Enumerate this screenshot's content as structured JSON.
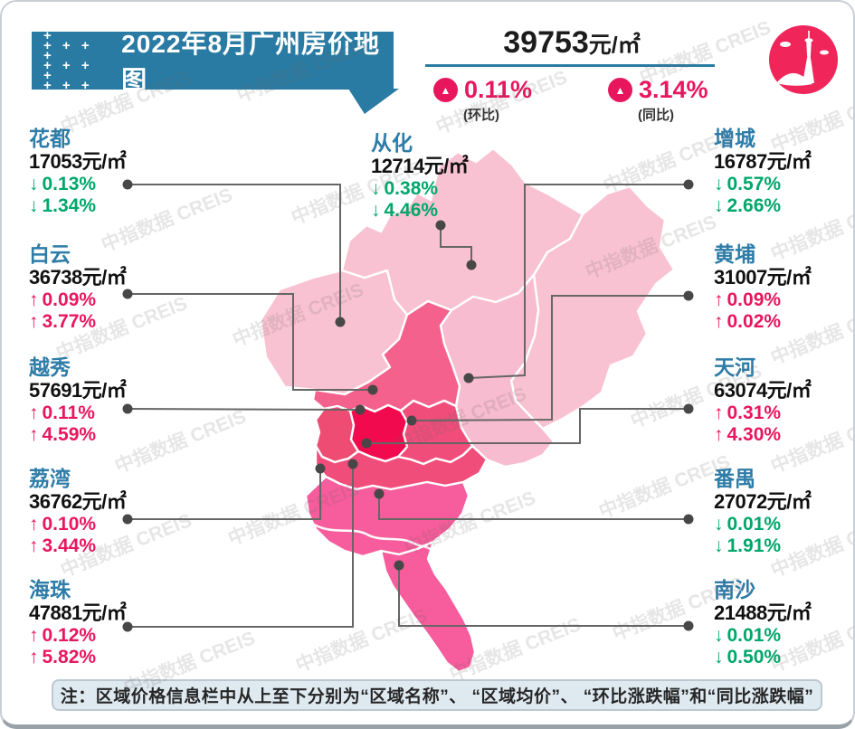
{
  "watermark": "中指数据 CREIS",
  "banner": {
    "title": "2022年8月广州房价地图"
  },
  "summary": {
    "avg_price": "39753",
    "unit": "元/㎡",
    "mom_value": "0.11%",
    "mom_label": "(环比)",
    "mom_dir": "up",
    "yoy_value": "3.14%",
    "yoy_label": "(同比)",
    "yoy_dir": "up"
  },
  "districts": [
    {
      "id": "huadu",
      "name": "花都",
      "price": "17053元/㎡",
      "mom_dir": "down",
      "mom": "0.13%",
      "yoy_dir": "down",
      "yoy": "1.34%"
    },
    {
      "id": "conghua",
      "name": "从化",
      "price": "12714元/㎡",
      "mom_dir": "down",
      "mom": "0.38%",
      "yoy_dir": "down",
      "yoy": "4.46%"
    },
    {
      "id": "zengcheng",
      "name": "增城",
      "price": "16787元/㎡",
      "mom_dir": "down",
      "mom": "0.57%",
      "yoy_dir": "down",
      "yoy": "2.66%"
    },
    {
      "id": "baiyun",
      "name": "白云",
      "price": "36738元/㎡",
      "mom_dir": "up",
      "mom": "0.09%",
      "yoy_dir": "up",
      "yoy": "3.77%"
    },
    {
      "id": "huangpu",
      "name": "黄埔",
      "price": "31007元/㎡",
      "mom_dir": "up",
      "mom": "0.09%",
      "yoy_dir": "up",
      "yoy": "0.02%"
    },
    {
      "id": "yuexiu",
      "name": "越秀",
      "price": "57691元/㎡",
      "mom_dir": "up",
      "mom": "0.11%",
      "yoy_dir": "up",
      "yoy": "4.59%"
    },
    {
      "id": "tianhe",
      "name": "天河",
      "price": "63074元/㎡",
      "mom_dir": "up",
      "mom": "0.31%",
      "yoy_dir": "up",
      "yoy": "4.30%"
    },
    {
      "id": "liwan",
      "name": "荔湾",
      "price": "36762元/㎡",
      "mom_dir": "up",
      "mom": "0.10%",
      "yoy_dir": "up",
      "yoy": "3.44%"
    },
    {
      "id": "panyu",
      "name": "番禺",
      "price": "27072元/㎡",
      "mom_dir": "down",
      "mom": "0.01%",
      "yoy_dir": "down",
      "yoy": "1.91%"
    },
    {
      "id": "haizhu",
      "name": "海珠",
      "price": "47881元/㎡",
      "mom_dir": "up",
      "mom": "0.12%",
      "yoy_dir": "up",
      "yoy": "5.82%"
    },
    {
      "id": "nansha",
      "name": "南沙",
      "price": "21488元/㎡",
      "mom_dir": "down",
      "mom": "0.01%",
      "yoy_dir": "down",
      "yoy": "0.50%"
    }
  ],
  "note": "注：区域价格信息栏中从上至下分别为“区域名称”、 “区域均价”、 “环比涨跌幅”和“同比涨跌幅”",
  "colors": {
    "banner": "#2a7ba3",
    "up": "#e8175d",
    "down": "#00a76b",
    "name_blue": "#2e7ca8",
    "map_light": "#f9c2d3",
    "map_light2": "#f8bcd0",
    "map_rose": "#f4618d",
    "map_rose2": "#f14d7b",
    "map_crimson": "#f10b4e",
    "map_dark_rose": "#ee4c72",
    "map_pink": "#f75c9c",
    "logo": "#f0265b"
  }
}
